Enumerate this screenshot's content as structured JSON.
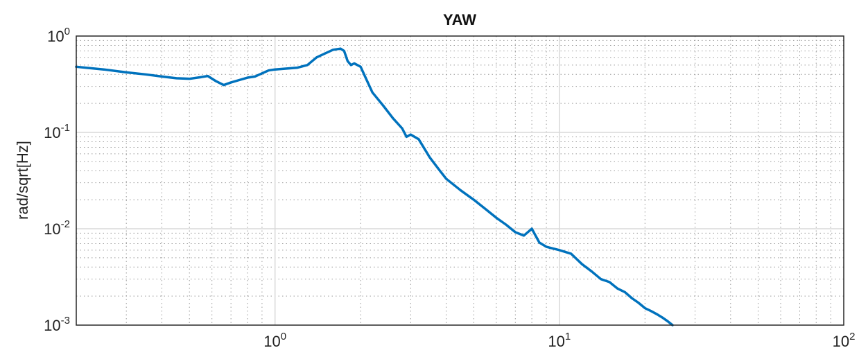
{
  "chart_data": {
    "type": "line",
    "title": "YAW",
    "xlabel": "",
    "ylabel": "rad/sqrt[Hz]",
    "xscale": "log",
    "yscale": "log",
    "xlim": [
      0.2,
      100
    ],
    "ylim": [
      0.001,
      1
    ],
    "grid": true,
    "minor_grid": true,
    "legend": "none",
    "x_ticks": [
      {
        "value": 1,
        "base": "10",
        "exp": "0"
      },
      {
        "value": 10,
        "base": "10",
        "exp": "1"
      },
      {
        "value": 100,
        "base": "10",
        "exp": "2"
      }
    ],
    "y_ticks": [
      {
        "value": 0.001,
        "base": "10",
        "exp": "-3"
      },
      {
        "value": 0.01,
        "base": "10",
        "exp": "-2"
      },
      {
        "value": 0.1,
        "base": "10",
        "exp": "-1"
      },
      {
        "value": 1,
        "base": "10",
        "exp": "0"
      }
    ],
    "series": [
      {
        "color": "#0072bd",
        "x": [
          0.2,
          0.25,
          0.3,
          0.35,
          0.4,
          0.45,
          0.5,
          0.55,
          0.58,
          0.62,
          0.66,
          0.7,
          0.75,
          0.8,
          0.85,
          0.9,
          0.95,
          1.0,
          1.1,
          1.2,
          1.3,
          1.4,
          1.5,
          1.6,
          1.7,
          1.75,
          1.8,
          1.85,
          1.9,
          2.0,
          2.1,
          2.2,
          2.4,
          2.6,
          2.8,
          2.9,
          3.0,
          3.2,
          3.5,
          3.8,
          4.0,
          4.5,
          5.0,
          5.5,
          6.0,
          6.5,
          7.0,
          7.5,
          8.0,
          8.5,
          9.0,
          10.0,
          11.0,
          12.0,
          13.0,
          14.0,
          15.0,
          16.0,
          17.0,
          18.0,
          19.0,
          20.0,
          21.0,
          22.0,
          23.0,
          24.0,
          25.0
        ],
        "y": [
          0.48,
          0.45,
          0.42,
          0.4,
          0.38,
          0.365,
          0.36,
          0.375,
          0.385,
          0.34,
          0.31,
          0.33,
          0.35,
          0.37,
          0.38,
          0.41,
          0.44,
          0.45,
          0.46,
          0.47,
          0.5,
          0.6,
          0.66,
          0.72,
          0.74,
          0.7,
          0.55,
          0.5,
          0.52,
          0.48,
          0.35,
          0.26,
          0.19,
          0.14,
          0.11,
          0.09,
          0.095,
          0.085,
          0.055,
          0.04,
          0.033,
          0.025,
          0.02,
          0.016,
          0.013,
          0.011,
          0.0092,
          0.0085,
          0.01,
          0.0072,
          0.0065,
          0.006,
          0.0055,
          0.0043,
          0.0036,
          0.003,
          0.0028,
          0.0024,
          0.0022,
          0.0019,
          0.0017,
          0.0015,
          0.0014,
          0.0013,
          0.0012,
          0.0011,
          0.001
        ]
      }
    ]
  }
}
